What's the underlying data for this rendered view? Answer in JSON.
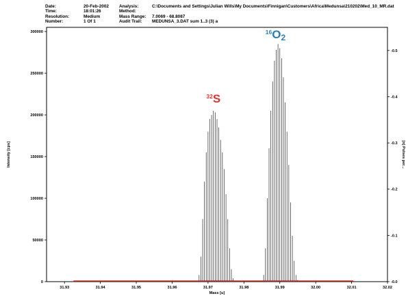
{
  "header": {
    "rows": [
      {
        "k1": "Date:",
        "v1": "20-Feb-2002",
        "k2": "Analysis:",
        "v2": "C:\\Documents and Settings\\Julian Wills\\My Documents\\Finnigan\\Customers\\Africa\\Medunsa\\210202\\Med_10_MR.dat"
      },
      {
        "k1": "Time:",
        "v1": "18:01:26",
        "k2": "Method:",
        "v2": ""
      },
      {
        "k1": "Resolution:",
        "v1": "Medium",
        "k2": "Mass Range:",
        "v2": "7.0069 - 68.8087"
      },
      {
        "k1": "Number:",
        "v1": "1 Of 1",
        "k2": "Audit Trail:",
        "v2": "MEDUNSA_3.DAT  sum 1..3 (3) a"
      }
    ]
  },
  "chart_data": {
    "type": "bar",
    "xlabel": "Mass [u]",
    "ylabel": "Intensity [cps]",
    "y2label": "[n] Pulses per...",
    "xlim": [
      31.925,
      32.02
    ],
    "ylim": [
      0,
      305000
    ],
    "y2lim": [
      0,
      0.55
    ],
    "xticks": [
      "31.93",
      "31.94",
      "31.95",
      "31.96",
      "31.97",
      "31.98",
      "31.99",
      "32.00",
      "32.01",
      "32.02"
    ],
    "yticks": [
      "0",
      "50000",
      "100000",
      "150000",
      "200000",
      "250000",
      "300000"
    ],
    "y2ticks": [
      "0.0",
      "0.1",
      "0.2",
      "0.3",
      "0.4",
      "0.5"
    ],
    "colors": {
      "sulfur": "#e2342f",
      "oxygen": "#2b7fb0",
      "baseline": "#e0302a",
      "bars": "#444444"
    },
    "annotations": [
      {
        "name": "sulfur-label",
        "sup": "32",
        "main": "S",
        "sub": "",
        "x": 31.9715,
        "y": 215000,
        "color": "#e2342f"
      },
      {
        "name": "oxygen-label",
        "sup": "16",
        "main": "O",
        "sub": "2",
        "x": 31.9888,
        "y": 292000,
        "color": "#2b7fb0"
      }
    ],
    "series": [
      {
        "x": [
          31.9675,
          31.968,
          31.9685,
          31.969,
          31.9695,
          31.97,
          31.9705,
          31.971,
          31.9715,
          31.972,
          31.9725,
          31.973,
          31.9735,
          31.974,
          31.9745,
          31.975,
          31.9755,
          31.976,
          31.9765,
          31.977
        ],
        "values": [
          8000,
          30000,
          75000,
          120000,
          155000,
          180000,
          195000,
          200000,
          205000,
          203000,
          195000,
          185000,
          170000,
          155000,
          135000,
          105000,
          75000,
          40000,
          15000,
          4000
        ]
      },
      {
        "x": [
          31.9855,
          31.986,
          31.9865,
          31.987,
          31.9875,
          31.988,
          31.9885,
          31.989,
          31.9895,
          31.99,
          31.9905,
          31.991,
          31.9915,
          31.992,
          31.9925,
          31.993,
          31.9935,
          31.994,
          31.9945,
          31.995
        ],
        "values": [
          8000,
          40000,
          100000,
          160000,
          205000,
          240000,
          265000,
          278000,
          285000,
          280000,
          268000,
          245000,
          215000,
          180000,
          140000,
          95000,
          55000,
          25000,
          8000,
          2000
        ]
      }
    ]
  }
}
